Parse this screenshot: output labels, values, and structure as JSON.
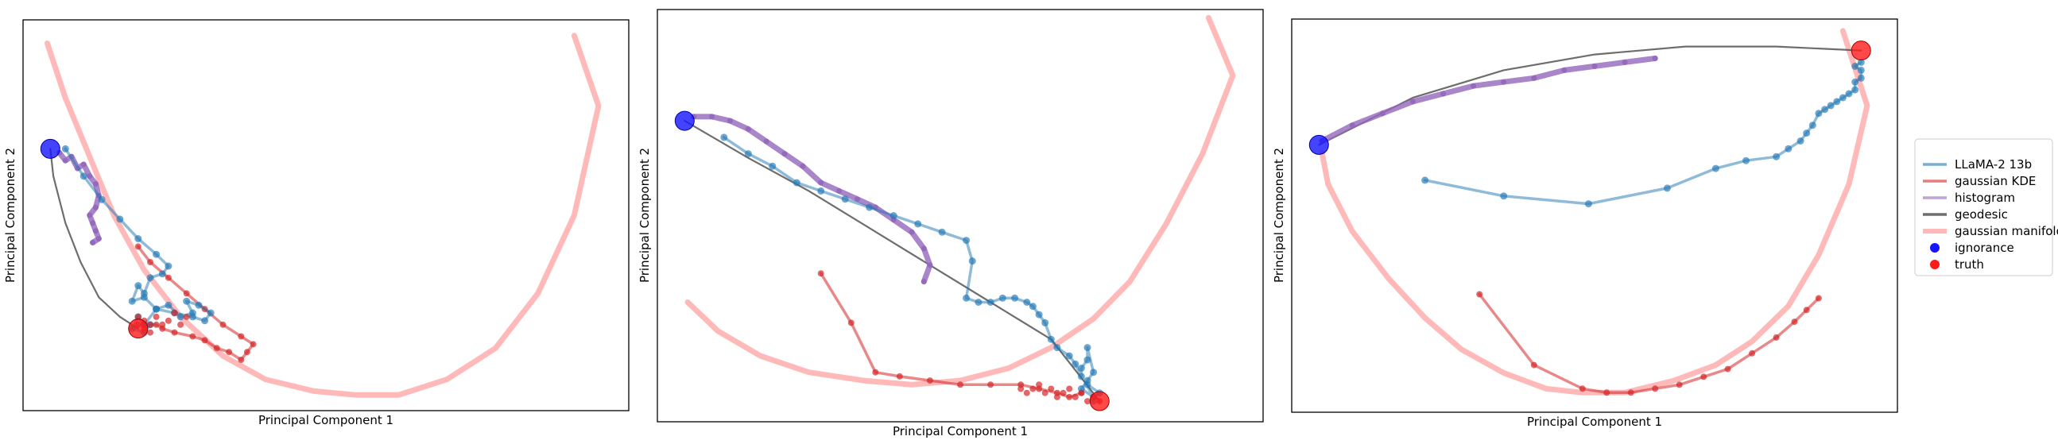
{
  "colors": {
    "llama": "#1f77b4",
    "kde": "#d62728",
    "histogram": "#9467bd",
    "geodesic": "#555555",
    "manifold": "#ff8a8a",
    "ignorance": "#1515ff",
    "truth": "#ff1a1a"
  },
  "legend": {
    "entries": [
      {
        "key": "llama",
        "label": "LLaMA-2 13b",
        "kind": "line"
      },
      {
        "key": "kde",
        "label": "gaussian KDE",
        "kind": "line"
      },
      {
        "key": "histogram",
        "label": "histogram",
        "kind": "line"
      },
      {
        "key": "geodesic",
        "label": "geodesic",
        "kind": "line"
      },
      {
        "key": "manifold",
        "label": "gaussian manifold",
        "kind": "line"
      },
      {
        "key": "ignorance",
        "label": "ignorance",
        "kind": "marker"
      },
      {
        "key": "truth",
        "label": "truth",
        "kind": "marker"
      }
    ],
    "placement": "right"
  },
  "chart_data": [
    {
      "type": "line",
      "xlabel": "Principal Component 1",
      "ylabel": "Principal Component 2",
      "xlim": [
        0,
        100
      ],
      "ylim": [
        0,
        100
      ],
      "ticks": "hidden",
      "grid": false,
      "series": [
        {
          "key": "manifold",
          "x": [
            91,
            95,
            91,
            85,
            78,
            70,
            62,
            55,
            48,
            40,
            33,
            26,
            20,
            15,
            11,
            7,
            4
          ],
          "y": [
            96,
            78,
            50,
            30,
            16,
            8,
            4,
            4,
            5,
            8,
            14,
            24,
            36,
            50,
            65,
            80,
            94
          ]
        },
        {
          "key": "geodesic",
          "x": [
            4.5,
            5,
            7,
            9.5,
            12.5,
            16,
            19
          ],
          "y": [
            67,
            60,
            48,
            38,
            29,
            24,
            21
          ]
        },
        {
          "key": "histogram",
          "x": [
            6,
            7,
            8,
            9,
            10,
            11,
            12,
            12.5,
            12,
            11,
            11.5,
            12,
            12.5,
            11.5
          ],
          "y": [
            66,
            64,
            65,
            62,
            63,
            60,
            58,
            55,
            52,
            50,
            48,
            46,
            44,
            43
          ]
        },
        {
          "key": "kde",
          "x": [
            19,
            21,
            24,
            27,
            30,
            33,
            36,
            38,
            37,
            36,
            34,
            32,
            30,
            28,
            25,
            23,
            22,
            20
          ],
          "y": [
            42,
            38,
            34,
            30,
            26,
            22,
            19,
            17,
            15,
            13,
            15,
            16,
            18,
            19,
            20,
            21,
            22,
            22
          ]
        },
        {
          "key": "llama",
          "x": [
            7,
            10,
            13,
            16,
            19,
            22,
            24,
            23,
            21,
            20,
            19,
            18,
            20,
            22,
            24,
            26,
            28,
            27,
            29,
            31,
            30,
            28,
            25,
            22,
            20,
            19,
            18,
            20,
            21
          ],
          "y": [
            67,
            60,
            54,
            49,
            44,
            40,
            37,
            35,
            34,
            30,
            32,
            28,
            29,
            26,
            27,
            24,
            25,
            28,
            27,
            25,
            23,
            24,
            25,
            26,
            22,
            24,
            21,
            20,
            22
          ]
        },
        {
          "key": "kde",
          "x": [
            19,
            20,
            21,
            22,
            23,
            24,
            25,
            26,
            27,
            21,
            20,
            19
          ],
          "y": [
            24,
            23,
            22,
            24,
            22,
            23,
            25,
            22,
            24,
            20,
            21,
            22
          ],
          "label_hint": "cluster"
        }
      ],
      "ignorance_point": [
        4.5,
        67
      ],
      "truth_point": [
        19,
        21
      ]
    },
    {
      "type": "line",
      "xlabel": "Principal Component 1",
      "ylabel": "Principal Component 2",
      "xlim": [
        0,
        100
      ],
      "ylim": [
        0,
        100
      ],
      "ticks": "hidden",
      "grid": false,
      "series": [
        {
          "key": "manifold",
          "x": [
            91,
            95,
            90,
            84,
            78,
            72,
            65,
            58,
            50,
            42,
            34,
            25,
            17,
            10,
            5
          ],
          "y": [
            98,
            84,
            65,
            48,
            34,
            25,
            18,
            13,
            10,
            9,
            10,
            12,
            16,
            22,
            29
          ]
        },
        {
          "key": "geodesic",
          "x": [
            4.5,
            15,
            25,
            35,
            45,
            55,
            65,
            73
          ],
          "y": [
            73,
            64,
            56,
            47,
            38,
            29,
            20,
            5
          ]
        },
        {
          "key": "histogram",
          "x": [
            6,
            9,
            12,
            15,
            18,
            21,
            24,
            27,
            30,
            33,
            36,
            39,
            42,
            44,
            45,
            44
          ],
          "y": [
            74,
            74,
            73,
            71,
            68,
            65,
            62,
            58,
            56,
            54,
            52,
            49,
            46,
            42,
            38,
            34
          ]
        },
        {
          "key": "kde",
          "x": [
            27,
            32,
            36,
            40,
            45,
            50,
            55,
            60,
            63,
            66,
            68,
            70
          ],
          "y": [
            36,
            24,
            12,
            11,
            10,
            9,
            9,
            9,
            8,
            7,
            6,
            7
          ]
        },
        {
          "key": "llama",
          "x": [
            11,
            15,
            19,
            23,
            27,
            31,
            35,
            39,
            43,
            47,
            51,
            52,
            51,
            53,
            55,
            57,
            59,
            61,
            62,
            63,
            64,
            65,
            66,
            68,
            69,
            70,
            70,
            71,
            71,
            72,
            71,
            70,
            72,
            73,
            71,
            72
          ],
          "y": [
            69,
            65,
            62,
            58,
            56,
            54,
            52,
            50,
            48,
            46,
            44,
            39,
            30,
            29,
            29,
            30,
            30,
            29,
            28,
            26,
            24,
            20,
            18,
            16,
            14,
            11,
            13,
            15,
            18,
            12,
            10,
            8,
            6,
            7,
            9,
            5
          ]
        },
        {
          "key": "kde",
          "x": [
            60,
            61,
            62,
            63,
            64,
            65,
            66,
            67,
            68,
            69,
            70,
            71,
            72,
            73
          ],
          "y": [
            8,
            7,
            8,
            9,
            7,
            8,
            6,
            7,
            8,
            6,
            7,
            5,
            6,
            5
          ],
          "label_hint": "cluster"
        }
      ],
      "ignorance_point": [
        4.5,
        73
      ],
      "truth_point": [
        73,
        5
      ]
    },
    {
      "type": "line",
      "xlabel": "Principal Component 1",
      "ylabel": "Principal Component 2",
      "xlim": [
        0,
        100
      ],
      "ylim": [
        0,
        100
      ],
      "ticks": "hidden",
      "grid": false,
      "series": [
        {
          "key": "manifold",
          "x": [
            91,
            95,
            92,
            87,
            82,
            76,
            70,
            63,
            55,
            48,
            42,
            35,
            28,
            22,
            16,
            10,
            6,
            5
          ],
          "y": [
            97,
            78,
            58,
            40,
            27,
            18,
            12,
            8,
            5,
            5,
            6,
            10,
            16,
            24,
            34,
            46,
            58,
            66
          ]
        },
        {
          "key": "geodesic",
          "x": [
            4.5,
            20,
            35,
            50,
            65,
            80,
            94
          ],
          "y": [
            68,
            80,
            87,
            91,
            93,
            93,
            92
          ]
        },
        {
          "key": "histogram",
          "x": [
            5,
            10,
            15,
            20,
            25,
            30,
            35,
            40,
            45,
            50,
            55,
            60
          ],
          "y": [
            69,
            73,
            76,
            79,
            81,
            83,
            84,
            85,
            87,
            88,
            89,
            90
          ]
        },
        {
          "key": "kde",
          "x": [
            31,
            40,
            48,
            52,
            56,
            60,
            64,
            68,
            72,
            76,
            80,
            83,
            85,
            87
          ],
          "y": [
            30,
            12,
            6,
            5,
            5,
            6,
            7,
            9,
            11,
            15,
            19,
            23,
            26,
            29
          ]
        },
        {
          "key": "llama",
          "x": [
            22,
            35,
            49,
            62,
            70,
            75,
            80,
            82,
            84,
            85,
            86,
            87,
            88,
            89,
            90,
            91,
            92,
            93,
            93,
            94,
            94,
            93,
            94
          ],
          "y": [
            59,
            55,
            53,
            57,
            62,
            64,
            65,
            67,
            69,
            71,
            73,
            76,
            77,
            78,
            79,
            80,
            81,
            82,
            84,
            85,
            87,
            88,
            89
          ]
        }
      ],
      "ignorance_point": [
        4.5,
        68
      ],
      "truth_point": [
        94,
        92
      ]
    }
  ]
}
